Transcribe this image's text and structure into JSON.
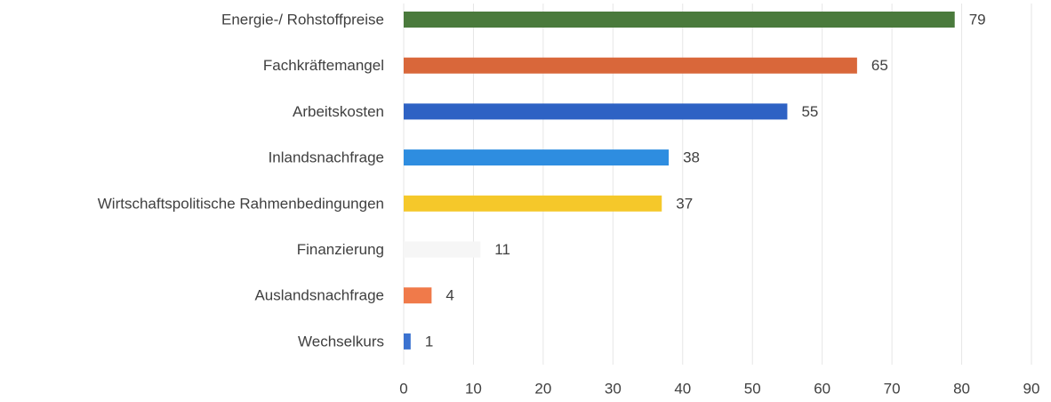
{
  "chart_data": {
    "type": "bar",
    "orientation": "horizontal",
    "categories": [
      "Energie-/ Rohstoffpreise",
      "Fachkräftemangel",
      "Arbeitskosten",
      "Inlandsnachfrage",
      "Wirtschaftspolitische Rahmenbedingungen",
      "Finanzierung",
      "Auslandsnachfrage",
      "Wechselkurs"
    ],
    "values": [
      79,
      65,
      55,
      38,
      37,
      11,
      4,
      1
    ],
    "colors": [
      "#4a7a3c",
      "#d9673a",
      "#2e62c4",
      "#2e8de0",
      "#f5c82a",
      "#f6f6f6",
      "#f07a4a",
      "#3b72d0"
    ],
    "xlim": [
      0,
      90
    ],
    "xticks": [
      0,
      10,
      20,
      30,
      40,
      50,
      60,
      70,
      80,
      90
    ],
    "grid": true
  }
}
